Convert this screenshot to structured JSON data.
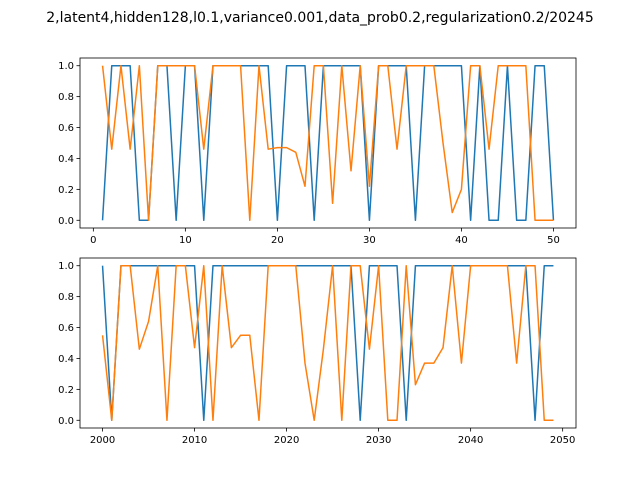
{
  "figure_title": "2,latent4,hidden128,l0.1,variance0.001,data_prob0.2,regularization0.2/20245",
  "colors": {
    "series_blue": "#1f77b4",
    "series_orange": "#ff7f0e"
  },
  "chart_data": [
    {
      "type": "line",
      "xlim": [
        -1.45,
        52.45
      ],
      "ylim": [
        -0.05,
        1.05
      ],
      "xticks": [
        0,
        10,
        20,
        30,
        40,
        50
      ],
      "xtick_labels": [
        "0",
        "10",
        "20",
        "30",
        "40",
        "50"
      ],
      "yticks": [
        0.0,
        0.2,
        0.4,
        0.6,
        0.8,
        1.0
      ],
      "ytick_labels": [
        "0.0",
        "0.2",
        "0.4",
        "0.6",
        "0.8",
        "1.0"
      ],
      "x": [
        1,
        2,
        3,
        4,
        5,
        6,
        7,
        8,
        9,
        10,
        11,
        12,
        13,
        14,
        15,
        16,
        17,
        18,
        19,
        20,
        21,
        22,
        23,
        24,
        25,
        26,
        27,
        28,
        29,
        30,
        31,
        32,
        33,
        34,
        35,
        36,
        37,
        38,
        39,
        40,
        41,
        42,
        43,
        44,
        45,
        46,
        47,
        48,
        49,
        50
      ],
      "series": [
        {
          "color": "#1f77b4",
          "values": [
            0,
            1,
            1,
            1,
            0,
            0,
            1,
            1,
            0,
            1,
            1,
            0,
            1,
            1,
            1,
            1,
            1,
            1,
            1,
            0,
            1,
            1,
            1,
            0,
            1,
            1,
            1,
            1,
            1,
            0,
            1,
            1,
            1,
            1,
            0,
            1,
            1,
            1,
            1,
            1,
            0,
            1,
            0,
            0,
            1,
            0,
            0,
            1,
            1,
            0
          ]
        },
        {
          "color": "#ff7f0e",
          "values": [
            1,
            0.46,
            1,
            0.46,
            1,
            0,
            1,
            1,
            1,
            1,
            1,
            0.46,
            1,
            1,
            1,
            1,
            0,
            1,
            0.46,
            0.47,
            0.47,
            0.44,
            0.22,
            1,
            1,
            0.11,
            1,
            0.32,
            1,
            0.22,
            1,
            1,
            0.46,
            1,
            1,
            1,
            1,
            0.5,
            0.05,
            0.2,
            1,
            1,
            0.46,
            1,
            1,
            1,
            1,
            0,
            0,
            0
          ]
        }
      ]
    },
    {
      "type": "line",
      "xlim": [
        1997.55,
        2051.45
      ],
      "ylim": [
        -0.05,
        1.05
      ],
      "xticks": [
        2000,
        2010,
        2020,
        2030,
        2040,
        2050
      ],
      "xtick_labels": [
        "2000",
        "2010",
        "2020",
        "2030",
        "2040",
        "2050"
      ],
      "yticks": [
        0.0,
        0.2,
        0.4,
        0.6,
        0.8,
        1.0
      ],
      "ytick_labels": [
        "0.0",
        "0.2",
        "0.4",
        "0.6",
        "0.8",
        "1.0"
      ],
      "x": [
        2000,
        2001,
        2002,
        2003,
        2004,
        2005,
        2006,
        2007,
        2008,
        2009,
        2010,
        2011,
        2012,
        2013,
        2014,
        2015,
        2016,
        2017,
        2018,
        2019,
        2020,
        2021,
        2022,
        2023,
        2024,
        2025,
        2026,
        2027,
        2028,
        2029,
        2030,
        2031,
        2032,
        2033,
        2034,
        2035,
        2036,
        2037,
        2038,
        2039,
        2040,
        2041,
        2042,
        2043,
        2044,
        2045,
        2046,
        2047,
        2048,
        2049
      ],
      "series": [
        {
          "color": "#1f77b4",
          "values": [
            1,
            0,
            1,
            1,
            1,
            1,
            1,
            1,
            1,
            1,
            1,
            0,
            1,
            1,
            1,
            1,
            1,
            1,
            1,
            1,
            1,
            1,
            1,
            1,
            1,
            1,
            1,
            1,
            0,
            1,
            1,
            1,
            1,
            0,
            1,
            1,
            1,
            1,
            1,
            1,
            1,
            1,
            1,
            1,
            1,
            1,
            1,
            0,
            1,
            1
          ]
        },
        {
          "color": "#ff7f0e",
          "values": [
            0.55,
            0,
            1,
            1,
            0.46,
            0.64,
            1,
            0,
            1,
            1,
            0.47,
            1,
            0,
            1,
            0.47,
            0.55,
            0.55,
            0,
            1,
            1,
            1,
            1,
            0.37,
            0,
            0.46,
            1,
            0,
            1,
            1,
            0.46,
            1,
            0,
            0,
            1,
            0.23,
            0.37,
            0.37,
            0.47,
            1,
            0.37,
            1,
            1,
            1,
            1,
            1,
            0.37,
            1,
            1,
            0,
            0
          ]
        }
      ]
    }
  ]
}
